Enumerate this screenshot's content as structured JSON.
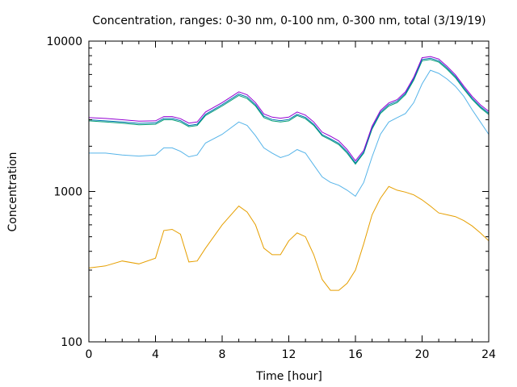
{
  "chart_data": {
    "type": "line",
    "title": "Concentration, ranges: 0-30 nm, 0-100 nm, 0-300 nm, total (3/19/19)",
    "xlabel": "Time [hour]",
    "ylabel": "Concentration",
    "xlim": [
      0,
      24
    ],
    "ylim": [
      100,
      10000
    ],
    "yscale": "log",
    "grid": false,
    "legend": "none",
    "x_ticks": [
      0,
      4,
      8,
      12,
      16,
      20,
      24
    ],
    "x_tick_labels": [
      "0",
      "4",
      "8",
      "12",
      "16",
      "20",
      "24"
    ],
    "y_ticks": [
      100,
      1000,
      10000
    ],
    "y_tick_labels": [
      "100",
      "1000",
      "10000"
    ],
    "x": [
      0,
      1,
      2,
      3,
      4,
      4.5,
      5,
      5.5,
      6,
      6.5,
      7,
      8,
      9,
      9.5,
      10,
      10.5,
      11,
      11.5,
      12,
      12.5,
      13,
      13.5,
      14,
      14.5,
      15,
      15.5,
      16,
      16.5,
      17,
      17.5,
      18,
      18.5,
      19,
      19.5,
      20,
      20.5,
      21,
      21.5,
      22,
      22.5,
      23,
      23.5,
      24
    ],
    "series": [
      {
        "color": "#e69f00",
        "values": [
          310,
          320,
          345,
          330,
          360,
          550,
          560,
          520,
          340,
          345,
          420,
          600,
          800,
          730,
          600,
          420,
          380,
          380,
          470,
          530,
          500,
          380,
          260,
          220,
          220,
          245,
          300,
          450,
          700,
          900,
          1080,
          1020,
          990,
          950,
          880,
          800,
          720,
          700,
          680,
          640,
          590,
          530,
          470
        ]
      },
      {
        "color": "#56b4e9",
        "values": [
          1800,
          1800,
          1750,
          1720,
          1750,
          1950,
          1950,
          1850,
          1700,
          1750,
          2100,
          2400,
          2900,
          2750,
          2350,
          1950,
          1800,
          1680,
          1750,
          1900,
          1800,
          1500,
          1250,
          1150,
          1100,
          1020,
          930,
          1150,
          1700,
          2400,
          2900,
          3100,
          3300,
          3900,
          5200,
          6400,
          6100,
          5600,
          5000,
          4300,
          3500,
          2900,
          2400
        ]
      },
      {
        "color": "#009e73",
        "values": [
          2950,
          2900,
          2850,
          2780,
          2800,
          3000,
          3000,
          2900,
          2700,
          2750,
          3200,
          3700,
          4350,
          4150,
          3700,
          3100,
          2950,
          2900,
          2950,
          3200,
          3050,
          2750,
          2350,
          2200,
          2050,
          1800,
          1520,
          1800,
          2600,
          3300,
          3700,
          3900,
          4400,
          5500,
          7400,
          7550,
          7250,
          6500,
          5700,
          4800,
          4100,
          3600,
          3250
        ]
      },
      {
        "color": "#0072b2",
        "values": [
          3000,
          2950,
          2900,
          2840,
          2860,
          3060,
          3060,
          2960,
          2750,
          2800,
          3260,
          3780,
          4450,
          4250,
          3780,
          3170,
          3010,
          2960,
          3010,
          3260,
          3110,
          2800,
          2390,
          2240,
          2090,
          1840,
          1550,
          1830,
          2650,
          3360,
          3780,
          3980,
          4490,
          5620,
          7550,
          7700,
          7400,
          6630,
          5820,
          4900,
          4180,
          3670,
          3320
        ]
      },
      {
        "color": "#9400d3",
        "values": [
          3100,
          3060,
          3000,
          2940,
          2950,
          3150,
          3150,
          3050,
          2850,
          2900,
          3380,
          3900,
          4600,
          4400,
          3900,
          3280,
          3120,
          3070,
          3120,
          3380,
          3220,
          2900,
          2480,
          2330,
          2170,
          1900,
          1600,
          1880,
          2720,
          3450,
          3880,
          4080,
          4600,
          5750,
          7750,
          7900,
          7600,
          6800,
          5970,
          5030,
          4290,
          3770,
          3410
        ]
      }
    ]
  }
}
